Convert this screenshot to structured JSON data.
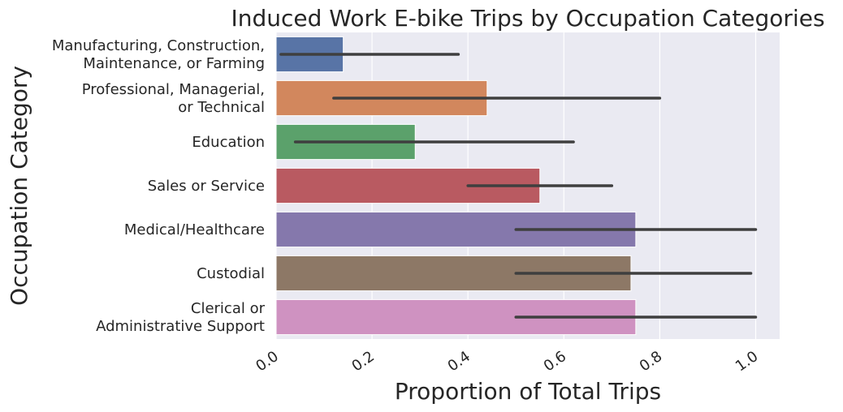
{
  "chart_data": {
    "type": "bar",
    "orientation": "horizontal",
    "title": "Induced Work E-bike Trips by Occupation Categories",
    "xlabel": "Proportion of Total Trips",
    "ylabel": "Occupation Category",
    "xlim": [
      0,
      1.05
    ],
    "xticks": [
      "0.0",
      "0.2",
      "0.4",
      "0.6",
      "0.8",
      "1.0"
    ],
    "grid": true,
    "categories": [
      [
        "Manufacturing, Construction,",
        "Maintenance, or Farming"
      ],
      [
        "Professional, Managerial,",
        "or Technical"
      ],
      [
        "Education"
      ],
      [
        "Sales or Service"
      ],
      [
        "Medical/Healthcare"
      ],
      [
        "Custodial"
      ],
      [
        "Clerical or",
        "Administrative Support"
      ]
    ],
    "values": [
      0.14,
      0.44,
      0.29,
      0.55,
      0.75,
      0.74,
      0.75
    ],
    "error_low": [
      0.01,
      0.12,
      0.04,
      0.4,
      0.5,
      0.5,
      0.5
    ],
    "error_high": [
      0.38,
      0.8,
      0.62,
      0.7,
      1.0,
      0.99,
      1.0
    ],
    "colors": [
      "#5874a6",
      "#d2875d",
      "#5ba16b",
      "#b95a61",
      "#8578ac",
      "#8d7866",
      "#cf92c1"
    ],
    "background": "#eaeaf2",
    "error_color": "#3f3f3f"
  }
}
